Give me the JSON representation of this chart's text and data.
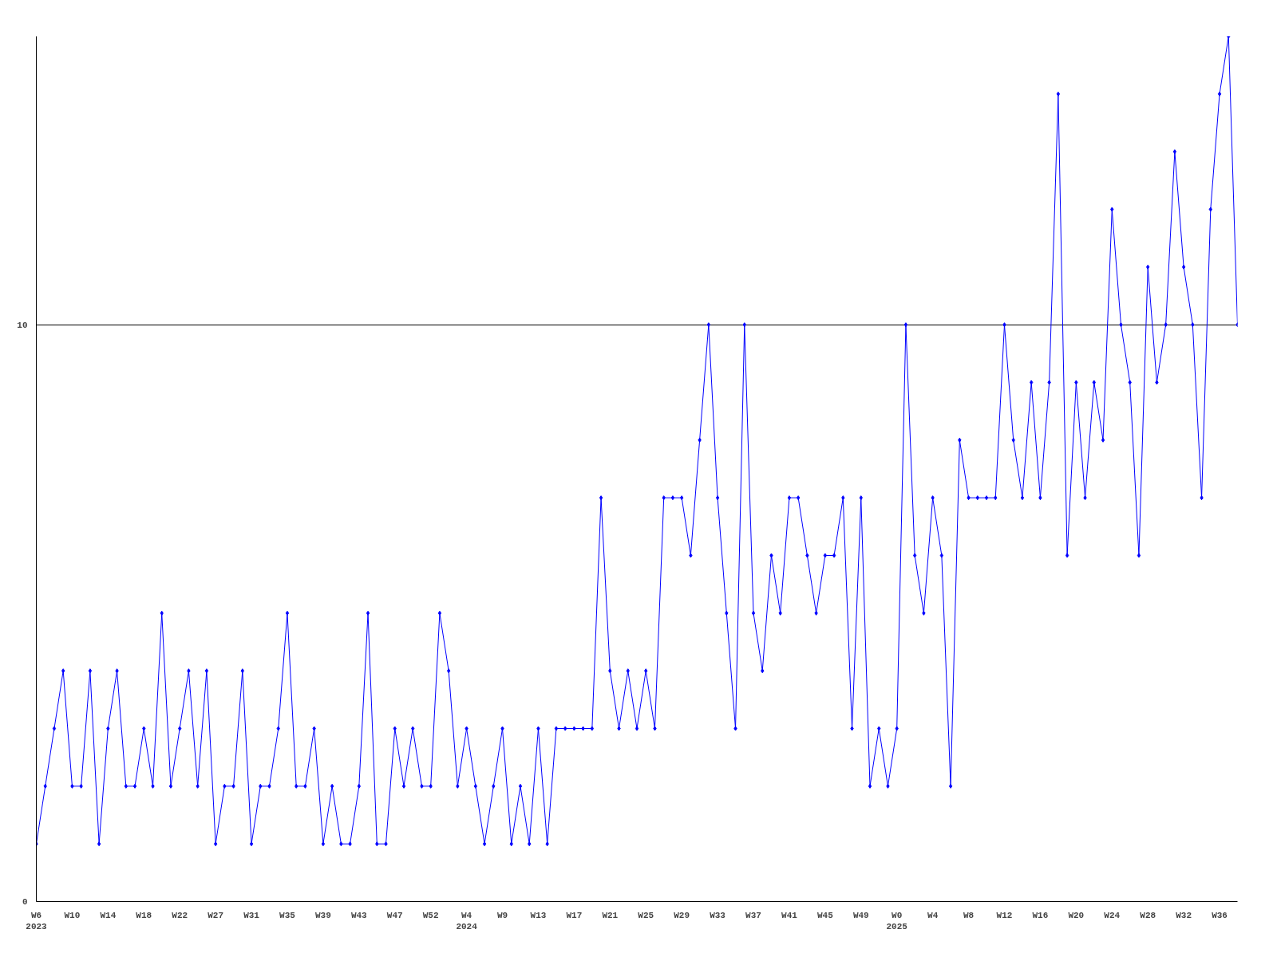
{
  "chart_data": {
    "type": "line",
    "color": "#0000ff",
    "marker": "diamond",
    "grid": "y",
    "ylim": [
      0,
      15
    ],
    "yticks": [
      0,
      10
    ],
    "categories": [
      "W6\n2023",
      null,
      null,
      null,
      "W10",
      null,
      null,
      null,
      "W14",
      null,
      null,
      null,
      "W18",
      null,
      null,
      null,
      "W22",
      null,
      null,
      null,
      "W27",
      null,
      null,
      null,
      "W31",
      null,
      null,
      null,
      "W35",
      null,
      null,
      null,
      "W39",
      null,
      null,
      null,
      "W43",
      null,
      null,
      null,
      "W47",
      null,
      null,
      null,
      "W52",
      null,
      null,
      null,
      "W4\n2024",
      null,
      null,
      null,
      "W9",
      null,
      null,
      null,
      "W13",
      null,
      null,
      null,
      "W17",
      null,
      null,
      null,
      "W21",
      null,
      null,
      null,
      "W25",
      null,
      null,
      null,
      "W29",
      null,
      null,
      null,
      "W33",
      null,
      null,
      null,
      "W37",
      null,
      null,
      null,
      "W41",
      null,
      null,
      null,
      "W45",
      null,
      null,
      null,
      "W49",
      null,
      null,
      null,
      "W0\n2025",
      null,
      null,
      null,
      "W4",
      null,
      null,
      null,
      "W8",
      null,
      null,
      null,
      "W12",
      null,
      null,
      null,
      "W16",
      null,
      null,
      null,
      "W20",
      null,
      null,
      null,
      "W24",
      null,
      null,
      null,
      "W28",
      null,
      null,
      null,
      "W32",
      null,
      null,
      null,
      "W36",
      null,
      null
    ],
    "values": [
      1,
      2,
      3,
      4,
      2,
      2,
      4,
      1,
      3,
      4,
      2,
      2,
      3,
      2,
      5,
      2,
      3,
      4,
      2,
      4,
      1,
      2,
      2,
      4,
      1,
      2,
      2,
      3,
      5,
      2,
      2,
      3,
      1,
      2,
      1,
      1,
      2,
      5,
      1,
      1,
      3,
      2,
      3,
      2,
      2,
      5,
      4,
      2,
      3,
      2,
      1,
      2,
      3,
      1,
      2,
      1,
      3,
      1,
      3,
      3,
      3,
      3,
      3,
      7,
      4,
      3,
      4,
      3,
      4,
      3,
      7,
      7,
      7,
      6,
      8,
      10,
      7,
      5,
      3,
      10,
      5,
      4,
      6,
      5,
      7,
      7,
      6,
      5,
      6,
      6,
      7,
      3,
      7,
      2,
      3,
      2,
      3,
      10,
      6,
      5,
      7,
      6,
      2,
      8,
      7,
      7,
      7,
      7,
      10,
      8,
      7,
      9,
      7,
      9,
      14,
      6,
      9,
      7,
      9,
      8,
      12,
      10,
      9,
      6,
      11,
      9,
      10,
      13,
      11,
      10,
      7,
      12,
      14,
      15,
      10
    ]
  }
}
